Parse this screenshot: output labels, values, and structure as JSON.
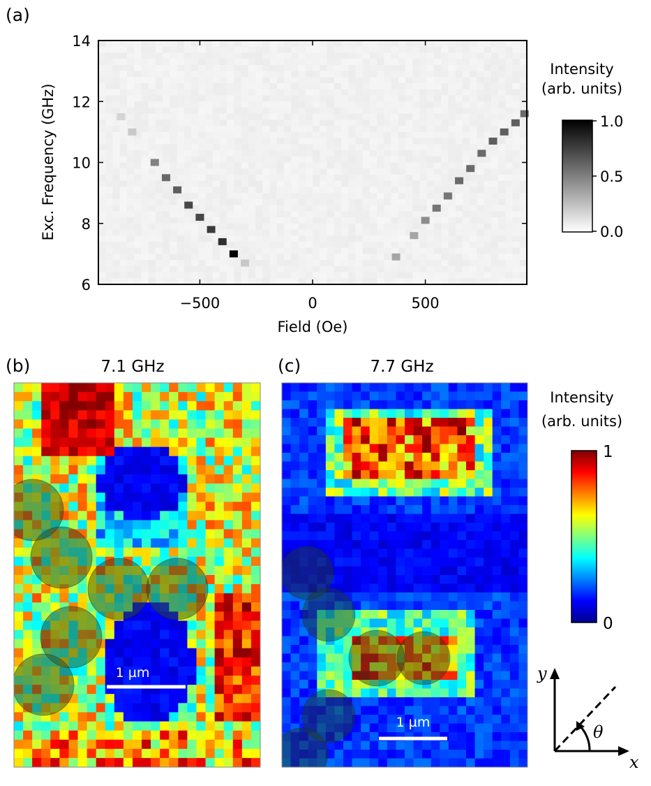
{
  "panels": {
    "a": {
      "label": "(a)"
    },
    "b": {
      "label": "(b)",
      "title": "7.1 GHz",
      "scalebar": "1 µm"
    },
    "c": {
      "label": "(c)",
      "title": "7.7 GHz",
      "scalebar": "1 µm"
    }
  },
  "colorbar_top": {
    "title_line1": "Intensity",
    "title_line2": "(arb. units)",
    "ticks": [
      "1.0",
      "0.5",
      "0.0"
    ],
    "colormap": "gray_r"
  },
  "colorbar_bottom": {
    "title_line1": "Intensity",
    "title_line2": "(arb. units)",
    "ticks": [
      "1",
      "0"
    ],
    "colormap": "jet"
  },
  "axes_inset": {
    "x_label": "x",
    "y_label": "y",
    "angle_label": "θ"
  },
  "chart_data": [
    {
      "type": "heatmap",
      "panel": "a",
      "xlabel": "Field (Oe)",
      "ylabel": "Exc. Frequency (GHz)",
      "xlim": [
        -950,
        950
      ],
      "ylim": [
        6,
        14
      ],
      "xticks": [
        -500,
        0,
        500
      ],
      "xtick_labels": [
        "−500",
        "0",
        "500"
      ],
      "yticks": [
        6,
        8,
        10,
        12,
        14
      ],
      "zlim": [
        0,
        1
      ],
      "branches": [
        {
          "name": "",
          "points": [
            {
              "field": -850,
              "freq": 11.5,
              "intensity": 0.1
            },
            {
              "field": -800,
              "freq": 11.0,
              "intensity": 0.15
            },
            {
              "field": -700,
              "freq": 10.0,
              "intensity": 0.45
            },
            {
              "field": -650,
              "freq": 9.5,
              "intensity": 0.55
            },
            {
              "field": -600,
              "freq": 9.1,
              "intensity": 0.6
            },
            {
              "field": -550,
              "freq": 8.6,
              "intensity": 0.7
            },
            {
              "field": -500,
              "freq": 8.2,
              "intensity": 0.7
            },
            {
              "field": -450,
              "freq": 7.8,
              "intensity": 0.75
            },
            {
              "field": -400,
              "freq": 7.4,
              "intensity": 0.8
            },
            {
              "field": -350,
              "freq": 7.0,
              "intensity": 1.0
            },
            {
              "field": -300,
              "freq": 6.7,
              "intensity": 0.15
            }
          ]
        },
        {
          "name": "",
          "points": [
            {
              "field": 370,
              "freq": 6.9,
              "intensity": 0.3
            },
            {
              "field": 450,
              "freq": 7.6,
              "intensity": 0.3
            },
            {
              "field": 500,
              "freq": 8.1,
              "intensity": 0.4
            },
            {
              "field": 550,
              "freq": 8.5,
              "intensity": 0.5
            },
            {
              "field": 600,
              "freq": 8.9,
              "intensity": 0.5
            },
            {
              "field": 650,
              "freq": 9.4,
              "intensity": 0.55
            },
            {
              "field": 700,
              "freq": 9.8,
              "intensity": 0.55
            },
            {
              "field": 750,
              "freq": 10.3,
              "intensity": 0.55
            },
            {
              "field": 800,
              "freq": 10.7,
              "intensity": 0.6
            },
            {
              "field": 850,
              "freq": 11.0,
              "intensity": 0.6
            },
            {
              "field": 900,
              "freq": 11.3,
              "intensity": 0.6
            },
            {
              "field": 940,
              "freq": 11.6,
              "intensity": 0.55
            }
          ]
        }
      ]
    }
  ]
}
